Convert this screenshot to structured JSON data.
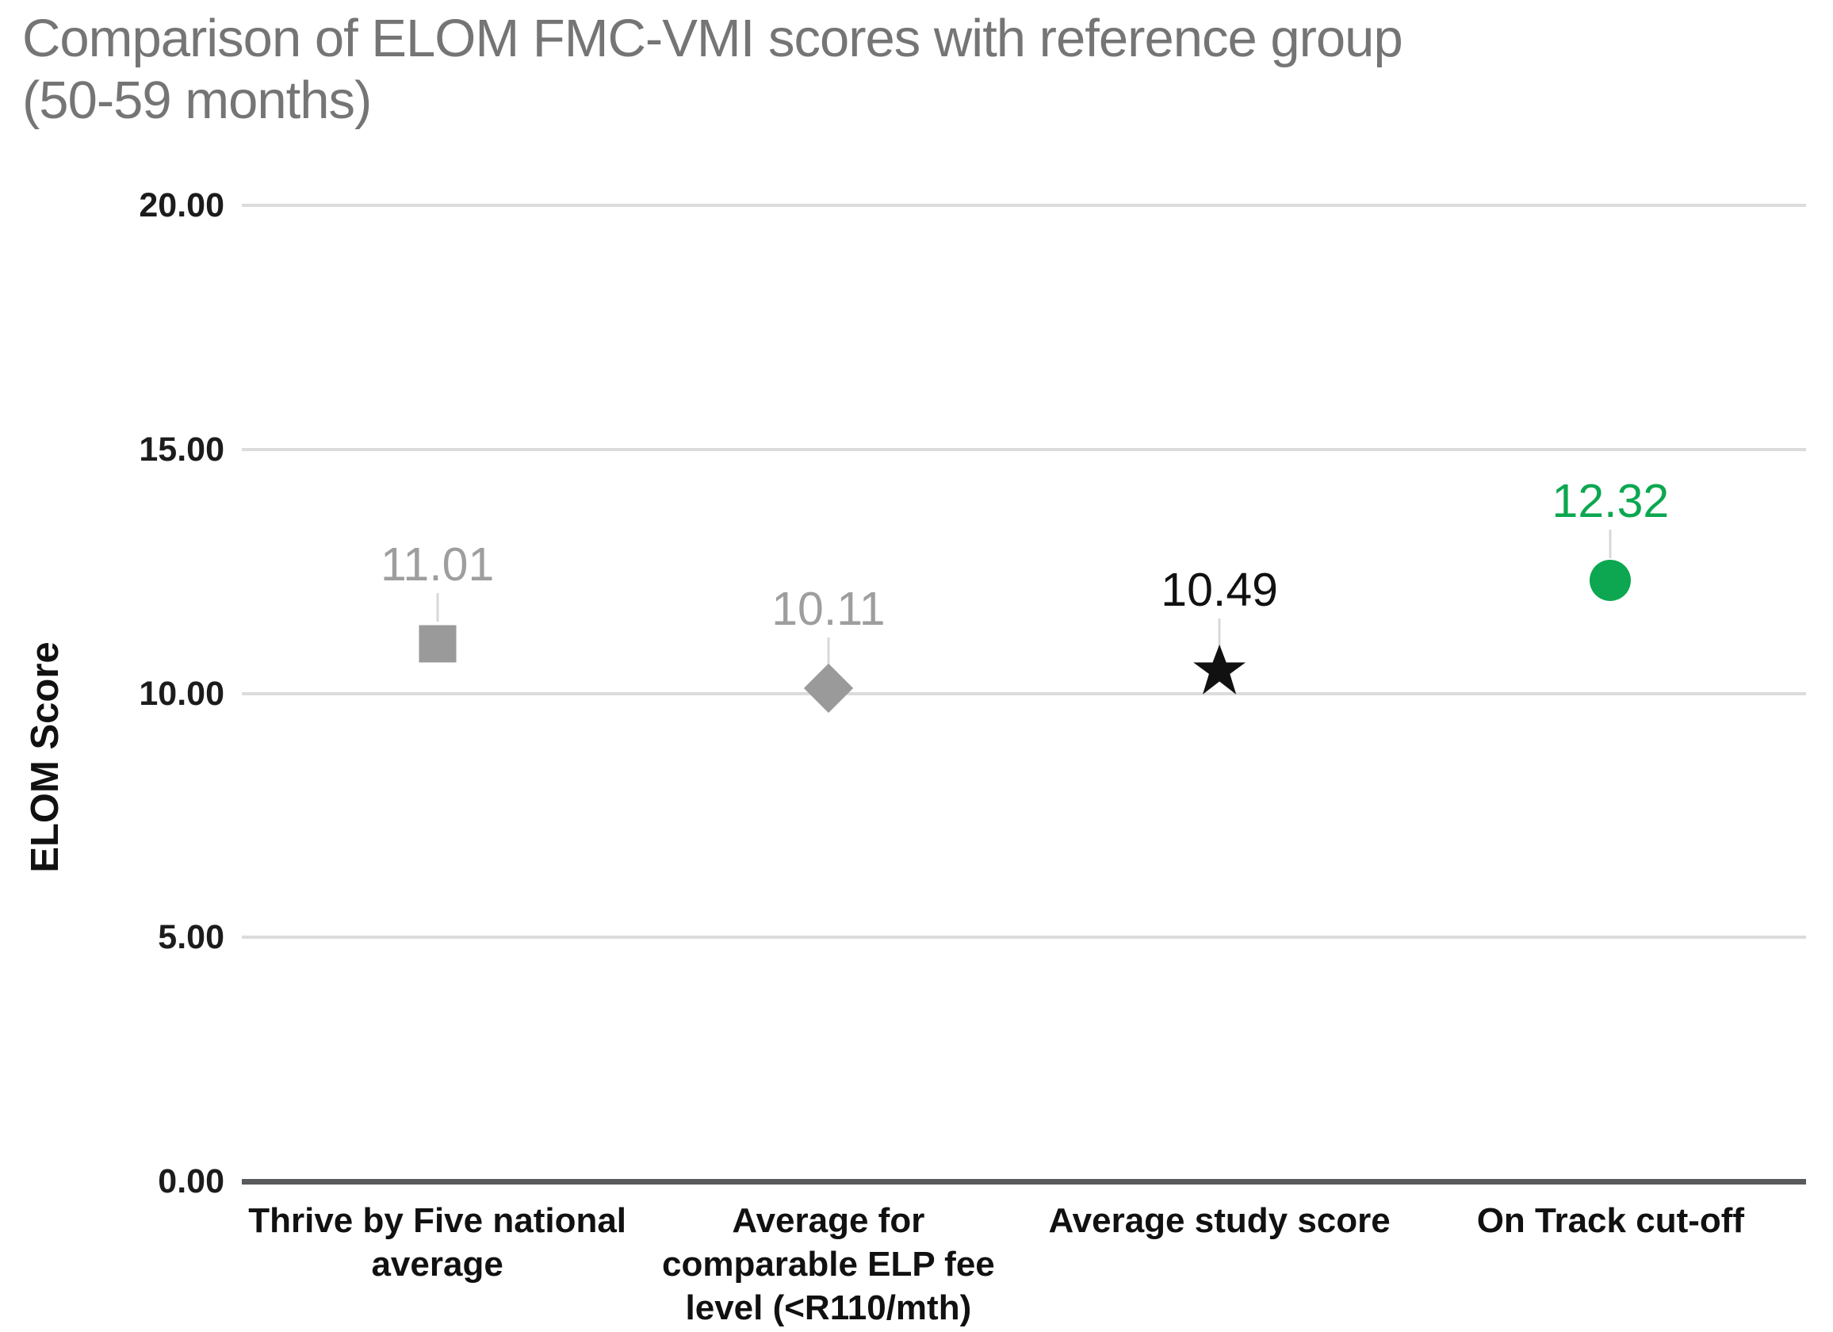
{
  "title": "Comparison of ELOM FMC-VMI scores with reference group\n(50-59 months)",
  "colors": {
    "title_text": "#757575",
    "gridline": "#dcdcdc",
    "axis_line": "#58595b",
    "gray_marker": "#9a9a9a",
    "gray_label": "#9e9e9e",
    "black_marker": "#111111",
    "green_accent": "#0ca750",
    "leader_line": "#d8d8d8"
  },
  "chart_data": {
    "type": "scatter",
    "title": "Comparison of ELOM FMC-VMI scores with reference group (50-59 months)",
    "xlabel": "",
    "ylabel": "ELOM Score",
    "ylim": [
      0,
      20
    ],
    "grid": true,
    "legend": false,
    "yticks": [
      {
        "value": 20,
        "label": "20.00"
      },
      {
        "value": 15,
        "label": "15.00"
      },
      {
        "value": 10,
        "label": "10.00"
      },
      {
        "value": 5,
        "label": "5.00"
      },
      {
        "value": 0,
        "label": "0.00"
      }
    ],
    "categories": [
      "Thrive by Five national average",
      "Average for comparable ELP fee level (<R110/mth)",
      "Average study score",
      "On Track cut-off"
    ],
    "values": [
      11.01,
      10.11,
      10.49,
      12.32
    ],
    "points": [
      {
        "category_display": "Thrive by Five national\naverage",
        "value": 11.01,
        "value_label": "11.01",
        "marker": "square",
        "marker_color": "#9a9a9a",
        "label_color": "#9e9e9e"
      },
      {
        "category_display": "Average for\ncomparable ELP fee\nlevel (<R110/mth)",
        "value": 10.11,
        "value_label": "10.11",
        "marker": "diamond",
        "marker_color": "#9a9a9a",
        "label_color": "#9e9e9e"
      },
      {
        "category_display": "Average study score",
        "value": 10.49,
        "value_label": "10.49",
        "marker": "star",
        "marker_color": "#111111",
        "label_color": "#111111"
      },
      {
        "category_display": "On Track cut-off",
        "value": 12.32,
        "value_label": "12.32",
        "marker": "circle",
        "marker_color": "#0ca750",
        "label_color": "#0ca750"
      }
    ]
  }
}
